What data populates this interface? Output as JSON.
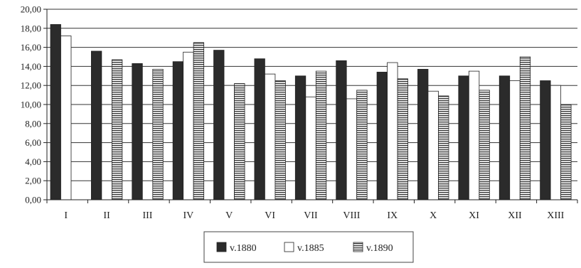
{
  "chart_data": {
    "type": "bar",
    "title": "",
    "xlabel": "",
    "ylabel": "",
    "ylim": [
      0,
      20
    ],
    "ytick_step": 2,
    "y_tick_labels": [
      "0,00",
      "2,00",
      "4,00",
      "6,00",
      "8,00",
      "10,00",
      "12,00",
      "14,00",
      "16,00",
      "18,00",
      "20,00"
    ],
    "grid": true,
    "legend_position": "bottom-center",
    "categories": [
      "I",
      "II",
      "III",
      "IV",
      "V",
      "VI",
      "VII",
      "VIII",
      "IX",
      "X",
      "XI",
      "XII",
      "XIII"
    ],
    "series": [
      {
        "name": "v.1880",
        "pattern": "solid-dark",
        "values": [
          18.4,
          15.6,
          14.3,
          14.5,
          15.7,
          14.8,
          13.0,
          14.6,
          13.4,
          13.7,
          13.0,
          13.0,
          12.5
        ]
      },
      {
        "name": "v.1885",
        "pattern": "white",
        "values": [
          17.2,
          0,
          0,
          15.5,
          12.0,
          13.2,
          10.8,
          10.6,
          14.4,
          11.4,
          13.5,
          12.5,
          12.0
        ]
      },
      {
        "name": "v.1890",
        "pattern": "horizontal-stripes",
        "values": [
          0,
          14.7,
          13.7,
          16.5,
          12.2,
          12.5,
          13.5,
          11.5,
          12.7,
          10.9,
          11.5,
          15.0,
          10.0
        ]
      }
    ]
  },
  "colors": {
    "series_dark": "#2b2b2b",
    "series_white": "#ffffff",
    "stripe": "#3a3a3a",
    "grid": "#333333",
    "axis": "#222222"
  }
}
